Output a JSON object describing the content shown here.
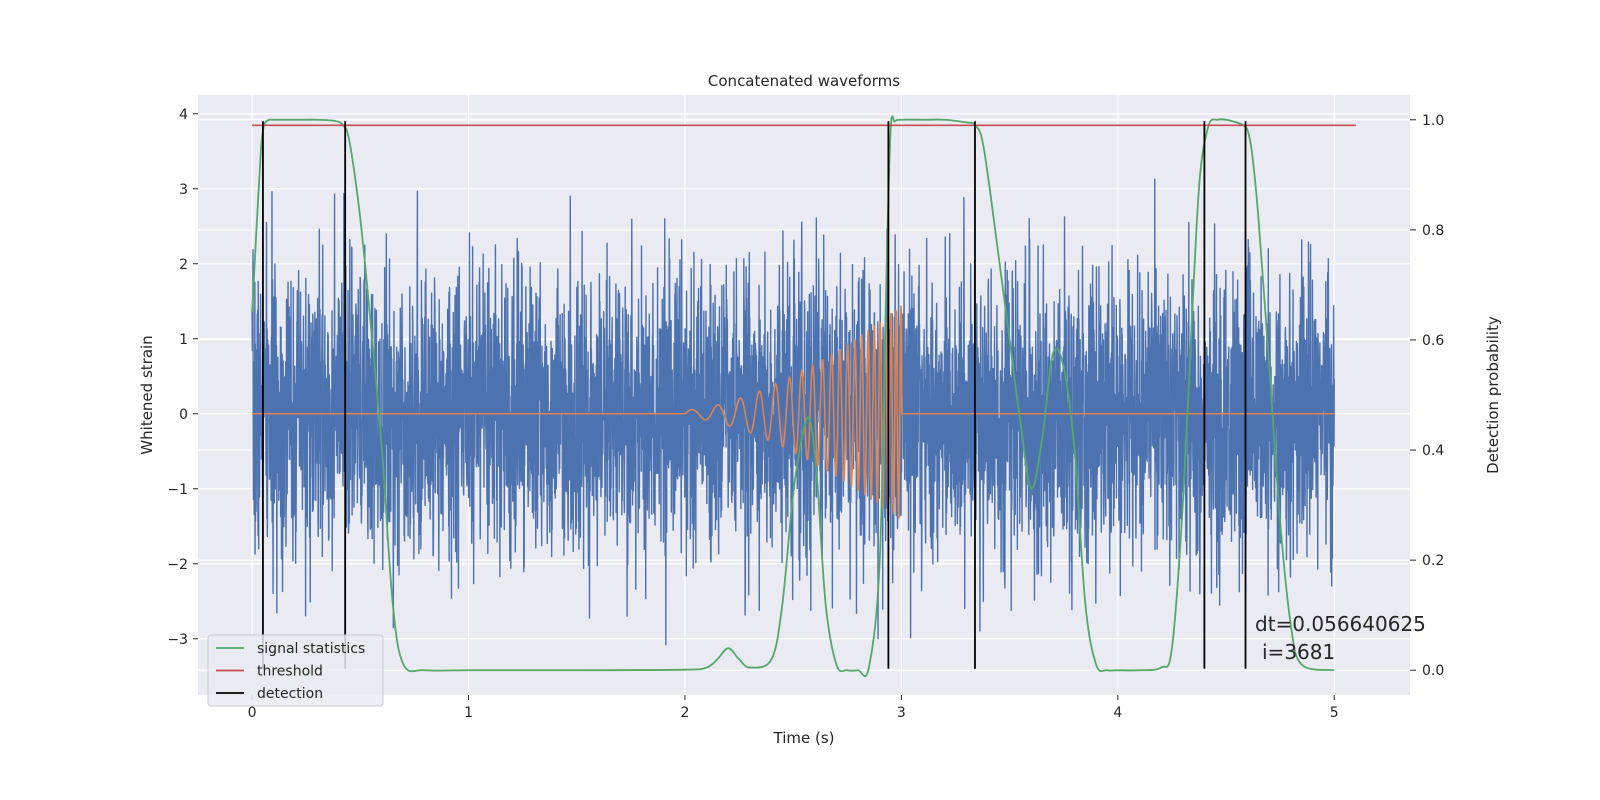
{
  "chart_data": {
    "type": "line",
    "title": "Concatenated waveforms",
    "xlabel": "Time (s)",
    "ylabel": "Whitened strain",
    "y2label": "Detection probability",
    "xlim": [
      -0.25,
      5.35
    ],
    "ylim": [
      -3.75,
      4.25
    ],
    "y2lim": [
      -0.045,
      1.045
    ],
    "xticks": [
      0,
      1,
      2,
      3,
      4,
      5
    ],
    "yticks": [
      -3,
      -2,
      -1,
      0,
      1,
      2,
      3,
      4
    ],
    "y2ticks": [
      0.0,
      0.2,
      0.4,
      0.6,
      0.8,
      1.0
    ],
    "xtick_labels": [
      "0",
      "1",
      "2",
      "3",
      "4",
      "5"
    ],
    "ytick_labels": [
      "−3",
      "−2",
      "−1",
      "0",
      "1",
      "2",
      "3",
      "4"
    ],
    "y2tick_labels": [
      "0.0",
      "0.2",
      "0.4",
      "0.6",
      "0.8",
      "1.0"
    ],
    "grid": true,
    "legend_position": "bottom-left",
    "colors": {
      "strain": "#4c72b0",
      "template": "#dd8452",
      "signal_statistics": "#55a868",
      "threshold": "#c44e52",
      "detection": "#000000",
      "plot_bg": "#eaeaf2",
      "grid": "#ffffff"
    },
    "noise": {
      "x_start": 0.0,
      "x_end": 5.0,
      "samples": 5120,
      "sigma": 0.95,
      "seed": 7
    },
    "chirp": {
      "t_start": 2.0,
      "t_end": 3.0,
      "f_start": 8,
      "f_end": 45,
      "amp_start": 0.05,
      "amp_end": 1.45
    },
    "series": [
      {
        "name": "signal statistics",
        "axis": "right",
        "x": [
          0.0,
          0.02,
          0.04,
          0.05,
          0.06,
          0.08,
          0.1,
          0.2,
          0.3,
          0.38,
          0.42,
          0.45,
          0.5,
          0.55,
          0.6,
          0.65,
          0.7,
          0.8,
          1.0,
          1.5,
          2.0,
          2.1,
          2.15,
          2.2,
          2.25,
          2.3,
          2.4,
          2.45,
          2.5,
          2.55,
          2.58,
          2.61,
          2.65,
          2.7,
          2.75,
          2.8,
          2.85,
          2.9,
          2.93,
          2.95,
          2.97,
          3.0,
          3.1,
          3.2,
          3.3,
          3.34,
          3.38,
          3.45,
          3.5,
          3.55,
          3.6,
          3.65,
          3.7,
          3.75,
          3.8,
          3.85,
          3.9,
          3.95,
          4.0,
          4.1,
          4.2,
          4.25,
          4.3,
          4.35,
          4.38,
          4.42,
          4.46,
          4.5,
          4.55,
          4.58,
          4.6,
          4.62,
          4.65,
          4.7,
          4.75,
          4.8,
          4.85,
          5.0
        ],
        "values": [
          0.65,
          0.8,
          0.94,
          0.98,
          0.995,
          1.0,
          1.0,
          1.0,
          1.0,
          0.998,
          0.99,
          0.96,
          0.82,
          0.62,
          0.4,
          0.12,
          0.01,
          0.0,
          0.0,
          0.0,
          0.001,
          0.005,
          0.02,
          0.04,
          0.02,
          0.005,
          0.02,
          0.12,
          0.32,
          0.44,
          0.45,
          0.35,
          0.12,
          0.01,
          0.0,
          0.0,
          0.005,
          0.2,
          0.7,
          0.98,
          0.997,
          1.0,
          1.0,
          1.0,
          0.995,
          0.99,
          0.95,
          0.75,
          0.6,
          0.45,
          0.33,
          0.42,
          0.575,
          0.55,
          0.4,
          0.12,
          0.01,
          0.0,
          0.0,
          0.0,
          0.005,
          0.04,
          0.3,
          0.7,
          0.9,
          0.99,
          1.0,
          1.0,
          0.995,
          0.99,
          0.98,
          0.94,
          0.82,
          0.55,
          0.27,
          0.08,
          0.01,
          0.0
        ]
      },
      {
        "name": "threshold",
        "axis": "right",
        "x": [
          0.0,
          5.1
        ],
        "values": [
          0.99,
          0.99
        ]
      },
      {
        "name": "detection",
        "axis": "left",
        "x": [
          0.05,
          0.43,
          2.94,
          3.34,
          4.4,
          4.59
        ],
        "y_range": [
          -3.4,
          3.9
        ]
      }
    ],
    "annotations": {
      "dt": "dt=0.056640625",
      "i": "i=3681"
    }
  }
}
